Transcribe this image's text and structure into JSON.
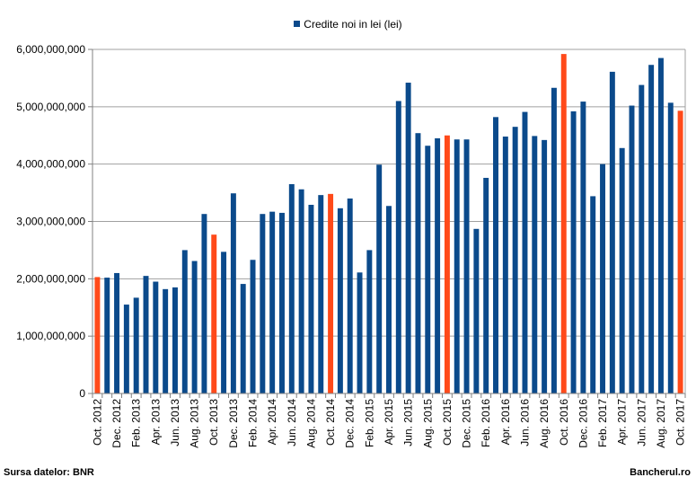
{
  "source_label": "Sursa datelor: BNR",
  "brand": "Bancherul.ro",
  "colors": {
    "bar": "#0b4a8b",
    "highlight": "#ff4a1a",
    "grid": "#a0a0a0",
    "axis": "#808080"
  },
  "chart_data": {
    "type": "bar",
    "title": "",
    "legend": [
      "Credite noi in lei (lei)"
    ],
    "legend_position": "top-center",
    "grid": true,
    "ylim": [
      0,
      6000000000
    ],
    "yticks": [
      "0",
      "1,000,000,000",
      "2,000,000,000",
      "3,000,000,000",
      "4,000,000,000",
      "5,000,000,000",
      "6,000,000,000"
    ],
    "xtick_labels": [
      "Oct. 2012",
      "Dec. 2012",
      "Feb. 2013",
      "Apr. 2013",
      "Jun. 2013",
      "Aug. 2013",
      "Oct. 2013",
      "Dec. 2013",
      "Feb. 2014",
      "Apr. 2014",
      "Jun. 2014",
      "Aug. 2014",
      "Oct. 2014",
      "Dec. 2014",
      "Feb. 2015",
      "Apr. 2015",
      "Jun. 2015",
      "Aug. 2015",
      "Oct. 2015",
      "Dec. 2015",
      "Feb. 2016",
      "Apr. 2016",
      "Jun. 2016",
      "Aug. 2016",
      "Oct. 2016",
      "Dec. 2016",
      "Feb. 2017",
      "Apr. 2017",
      "Jun. 2017",
      "Aug. 2017",
      "Oct. 2017"
    ],
    "categories": [
      "Oct. 2012",
      "Nov. 2012",
      "Dec. 2012",
      "Jan. 2013",
      "Feb. 2013",
      "Mar. 2013",
      "Apr. 2013",
      "May 2013",
      "Jun. 2013",
      "Jul. 2013",
      "Aug. 2013",
      "Sep. 2013",
      "Oct. 2013",
      "Nov. 2013",
      "Dec. 2013",
      "Jan. 2014",
      "Feb. 2014",
      "Mar. 2014",
      "Apr. 2014",
      "May 2014",
      "Jun. 2014",
      "Jul. 2014",
      "Aug. 2014",
      "Sep. 2014",
      "Oct. 2014",
      "Nov. 2014",
      "Dec. 2014",
      "Jan. 2015",
      "Feb. 2015",
      "Mar. 2015",
      "Apr. 2015",
      "May 2015",
      "Jun. 2015",
      "Jul. 2015",
      "Aug. 2015",
      "Sep. 2015",
      "Oct. 2015",
      "Nov. 2015",
      "Dec. 2015",
      "Jan. 2016",
      "Feb. 2016",
      "Mar. 2016",
      "Apr. 2016",
      "May 2016",
      "Jun. 2016",
      "Jul. 2016",
      "Aug. 2016",
      "Sep. 2016",
      "Oct. 2016",
      "Nov. 2016",
      "Dec. 2016",
      "Jan. 2017",
      "Feb. 2017",
      "Mar. 2017",
      "Apr. 2017",
      "May 2017",
      "Jun. 2017",
      "Jul. 2017",
      "Aug. 2017",
      "Sep. 2017",
      "Oct. 2017"
    ],
    "values": [
      2030000000,
      2020000000,
      2100000000,
      1550000000,
      1670000000,
      2050000000,
      1950000000,
      1820000000,
      1850000000,
      2500000000,
      2310000000,
      3130000000,
      2770000000,
      2470000000,
      3490000000,
      1910000000,
      2330000000,
      3130000000,
      3170000000,
      3150000000,
      3650000000,
      3560000000,
      3290000000,
      3460000000,
      3480000000,
      3230000000,
      3400000000,
      2110000000,
      2500000000,
      3990000000,
      3270000000,
      5100000000,
      5420000000,
      4540000000,
      4320000000,
      4450000000,
      4500000000,
      4430000000,
      4430000000,
      2870000000,
      3760000000,
      4820000000,
      4480000000,
      4650000000,
      4910000000,
      4490000000,
      4420000000,
      5330000000,
      5920000000,
      4920000000,
      5090000000,
      3440000000,
      4000000000,
      5610000000,
      4280000000,
      5020000000,
      5380000000,
      5730000000,
      5850000000,
      5070000000,
      4930000000
    ],
    "highlighted": [
      "Oct. 2012",
      "Oct. 2013",
      "Oct. 2014",
      "Oct. 2015",
      "Oct. 2016",
      "Oct. 2017"
    ]
  }
}
